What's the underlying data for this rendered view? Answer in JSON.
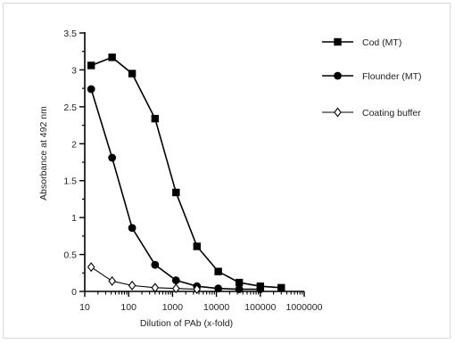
{
  "chart_data": {
    "type": "line",
    "xscale": "log",
    "xlabel": "Dilution of PAb (x-fold)",
    "ylabel": "Absorbance at 492 nm",
    "xlim": [
      10,
      1000000
    ],
    "ylim": [
      0,
      3.5
    ],
    "xtick_labels": [
      "10",
      "100",
      "1000",
      "10000",
      "100000",
      "1000000"
    ],
    "xticks": [
      10,
      100,
      1000,
      10000,
      100000,
      1000000
    ],
    "ytick_labels": [
      "0",
      "0.5",
      "1",
      "1.5",
      "2",
      "2.5",
      "3",
      "3.5"
    ],
    "yticks": [
      0,
      0.5,
      1,
      1.5,
      2,
      2.5,
      3,
      3.5
    ],
    "legend_position": "top-right",
    "series": [
      {
        "name": "Cod (MT)",
        "marker": "square",
        "x": [
          14,
          42,
          120,
          400,
          1200,
          3600,
          11000,
          33000,
          100000,
          300000
        ],
        "y": [
          3.06,
          3.17,
          2.95,
          2.34,
          1.34,
          0.61,
          0.27,
          0.12,
          0.07,
          0.05
        ]
      },
      {
        "name": "Flounder (MT)",
        "marker": "circle",
        "x": [
          14,
          42,
          120,
          400,
          1200,
          3600,
          11000,
          33000,
          100000
        ],
        "y": [
          2.74,
          1.81,
          0.86,
          0.36,
          0.15,
          0.07,
          0.04,
          0.03,
          0.03
        ]
      },
      {
        "name": "Coating buffer",
        "marker": "diamond-open",
        "x": [
          14,
          42,
          120,
          400,
          1200,
          3600
        ],
        "y": [
          0.33,
          0.14,
          0.08,
          0.05,
          0.04,
          0.03
        ]
      }
    ]
  }
}
